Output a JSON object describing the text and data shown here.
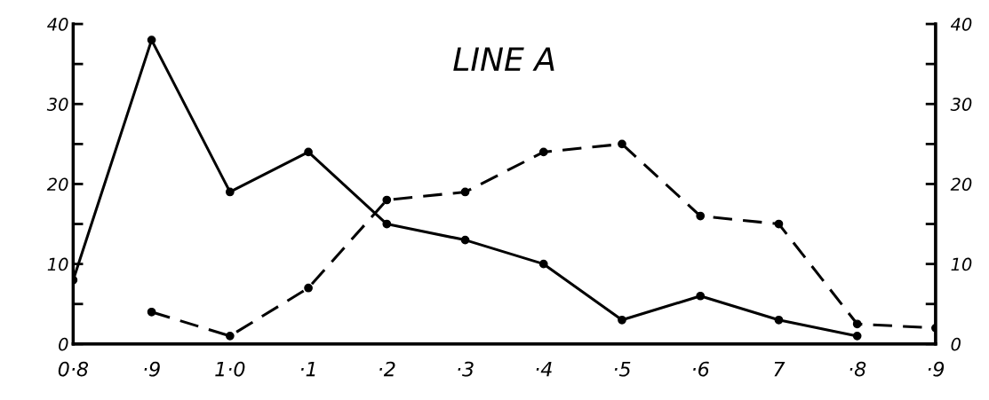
{
  "chart_data": {
    "type": "line",
    "title": "LINE A",
    "categories": [
      "0·8",
      "·9",
      "1·0",
      "·1",
      "·2",
      "·3",
      "·4",
      "·5",
      "·6",
      "7",
      "·8",
      "·9"
    ],
    "series": [
      {
        "color": "#000000",
        "line_style": "solid",
        "values": [
          8,
          38,
          19,
          24,
          15,
          13,
          10,
          3,
          6,
          3,
          1,
          null
        ]
      },
      {
        "color": "#000000",
        "line_style": "dashed",
        "values": [
          null,
          4,
          1,
          7,
          18,
          19,
          24,
          25,
          16,
          15,
          2.5,
          2
        ]
      }
    ],
    "ylim": [
      0,
      40
    ],
    "yticks": [
      0,
      {
        "value": 5,
        "label": null
      },
      10,
      {
        "value": 15,
        "label": null
      },
      20,
      {
        "value": 25,
        "label": null
      },
      30,
      {
        "value": 35,
        "label": null
      },
      40
    ],
    "y2lim": [
      0,
      40
    ],
    "y2ticks": [
      0,
      {
        "value": 5,
        "label": null
      },
      10,
      {
        "value": 15,
        "label": null
      },
      20,
      {
        "value": 25,
        "label": null
      },
      30,
      {
        "value": 35,
        "label": null
      },
      40
    ],
    "marker": "circle",
    "grid": false,
    "legend": false
  }
}
